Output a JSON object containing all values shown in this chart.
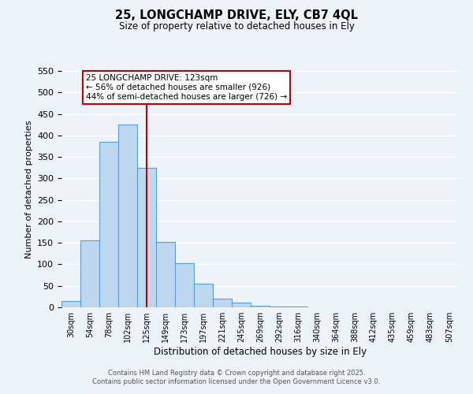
{
  "title": "25, LONGCHAMP DRIVE, ELY, CB7 4QL",
  "subtitle": "Size of property relative to detached houses in Ely",
  "xlabel": "Distribution of detached houses by size in Ely",
  "ylabel": "Number of detached properties",
  "bar_labels": [
    "30sqm",
    "54sqm",
    "78sqm",
    "102sqm",
    "125sqm",
    "149sqm",
    "173sqm",
    "197sqm",
    "221sqm",
    "245sqm",
    "269sqm",
    "292sqm",
    "316sqm",
    "340sqm",
    "364sqm",
    "388sqm",
    "412sqm",
    "435sqm",
    "459sqm",
    "483sqm",
    "507sqm"
  ],
  "bar_heights": [
    15,
    155,
    385,
    425,
    325,
    153,
    102,
    55,
    20,
    11,
    3,
    1,
    1,
    0,
    0,
    0,
    0,
    0,
    0,
    0,
    0
  ],
  "bar_color": "#bdd7ee",
  "bar_edge_color": "#5b9bd5",
  "ylim": [
    0,
    550
  ],
  "yticks": [
    0,
    50,
    100,
    150,
    200,
    250,
    300,
    350,
    400,
    450,
    500,
    550
  ],
  "vline_x": 4,
  "vline_color": "#c00000",
  "annotation_box_text_line1": "25 LONGCHAMP DRIVE: 123sqm",
  "annotation_box_text_line2": "← 56% of detached houses are smaller (926)",
  "annotation_box_text_line3": "44% of semi-detached houses are larger (726) →",
  "annotation_box_edge_color": "#c00000",
  "annotation_box_face_color": "#ffffff",
  "bg_color": "#eef2f9",
  "grid_color": "#ffffff",
  "footnote1": "Contains HM Land Registry data © Crown copyright and database right 2025.",
  "footnote2": "Contains public sector information licensed under the Open Government Licence v3.0."
}
